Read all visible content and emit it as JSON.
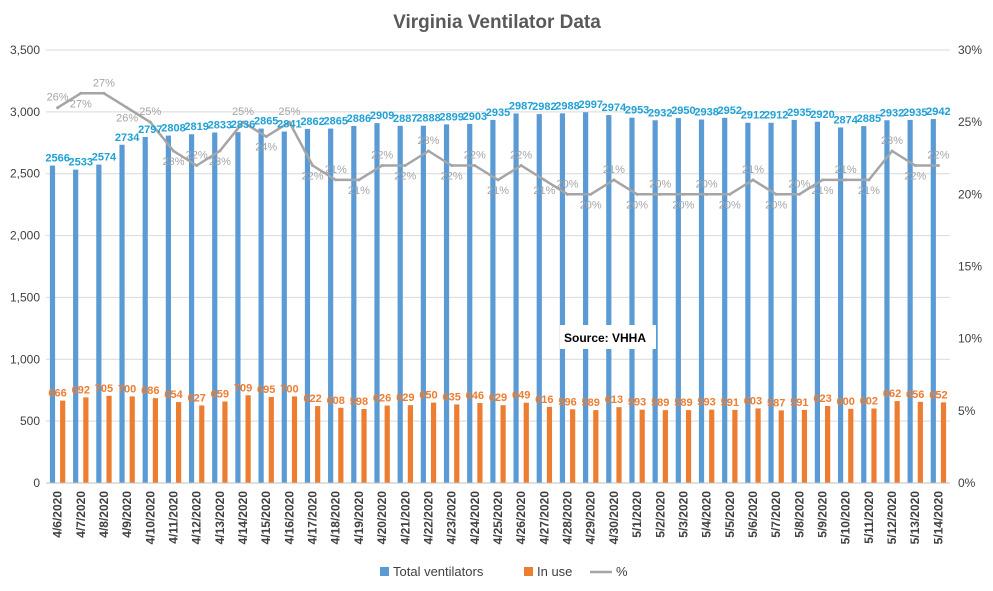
{
  "chart_data": {
    "type": "bar",
    "title": "Virginia Ventilator Data",
    "note": "Source: VHHA",
    "categories": [
      "4/6/2020",
      "4/7/2020",
      "4/8/2020",
      "4/9/2020",
      "4/10/2020",
      "4/11/2020",
      "4/12/2020",
      "4/13/2020",
      "4/14/2020",
      "4/15/2020",
      "4/16/2020",
      "4/17/2020",
      "4/18/2020",
      "4/19/2020",
      "4/20/2020",
      "4/21/2020",
      "4/22/2020",
      "4/23/2020",
      "4/24/2020",
      "4/25/2020",
      "4/26/2020",
      "4/27/2020",
      "4/28/2020",
      "4/29/2020",
      "4/30/2020",
      "5/1/2020",
      "5/2/2020",
      "5/3/2020",
      "5/4/2020",
      "5/5/2020",
      "5/6/2020",
      "5/7/2020",
      "5/8/2020",
      "5/9/2020",
      "5/10/2020",
      "5/11/2020",
      "5/12/2020",
      "5/13/2020",
      "5/14/2020"
    ],
    "series": [
      {
        "name": "Total ventilators",
        "type": "bar",
        "axis": "left",
        "color": "#5B9BD5",
        "label_color": "#1FA1D6",
        "values": [
          2566,
          2533,
          2574,
          2734,
          2797,
          2808,
          2819,
          2833,
          2836,
          2865,
          2841,
          2862,
          2865,
          2886,
          2909,
          2887,
          2888,
          2899,
          2903,
          2935,
          2987,
          2982,
          2988,
          2997,
          2974,
          2953,
          2932,
          2950,
          2938,
          2952,
          2912,
          2912,
          2935,
          2920,
          2874,
          2885,
          2932,
          2935,
          2942
        ]
      },
      {
        "name": "In use",
        "type": "bar",
        "axis": "left",
        "color": "#ED7D31",
        "label_color": "#ED7D31",
        "values": [
          666,
          692,
          705,
          700,
          686,
          654,
          627,
          659,
          709,
          695,
          700,
          622,
          608,
          598,
          626,
          629,
          650,
          635,
          646,
          629,
          649,
          616,
          596,
          589,
          613,
          593,
          589,
          589,
          593,
          591,
          603,
          587,
          591,
          623,
          600,
          602,
          662,
          656,
          652
        ]
      },
      {
        "name": "%",
        "type": "line",
        "axis": "right",
        "color": "#A5A5A5",
        "label_color": "#A5A5A5",
        "values": [
          26,
          27,
          27,
          26,
          25,
          23,
          22,
          23,
          25,
          24,
          25,
          22,
          21,
          21,
          22,
          22,
          23,
          22,
          22,
          21,
          22,
          21,
          20,
          20,
          21,
          20,
          20,
          20,
          20,
          20,
          21,
          20,
          20,
          21,
          21,
          21,
          23,
          22,
          22
        ],
        "labels": [
          "26%",
          "27%",
          "27%",
          "26%",
          "25%",
          "23%",
          "22%",
          "23%",
          "25%",
          "24%",
          "25%",
          "22%",
          "21%",
          "21%",
          "22%",
          "22%",
          "23%",
          "22%",
          "22%",
          "21%",
          "22%",
          "21%",
          "20%",
          "20%",
          "21%",
          "20%",
          "20%",
          "20%",
          "20%",
          "20%",
          "21%",
          "20%",
          "20%",
          "21%",
          "21%",
          "21%",
          "23%",
          "22%",
          "22%"
        ]
      }
    ],
    "y_left": {
      "min": 0,
      "max": 3500,
      "ticks": [
        "0",
        "500",
        "1,000",
        "1,500",
        "2,000",
        "2,500",
        "3,000",
        "3,500"
      ]
    },
    "y_right": {
      "min": 0,
      "max": 30,
      "ticks": [
        "0%",
        "5%",
        "10%",
        "15%",
        "20%",
        "25%",
        "30%"
      ]
    },
    "grid": "horizontal",
    "legend_position": "bottom",
    "legend": [
      "Total ventilators",
      "In use",
      "%"
    ]
  }
}
